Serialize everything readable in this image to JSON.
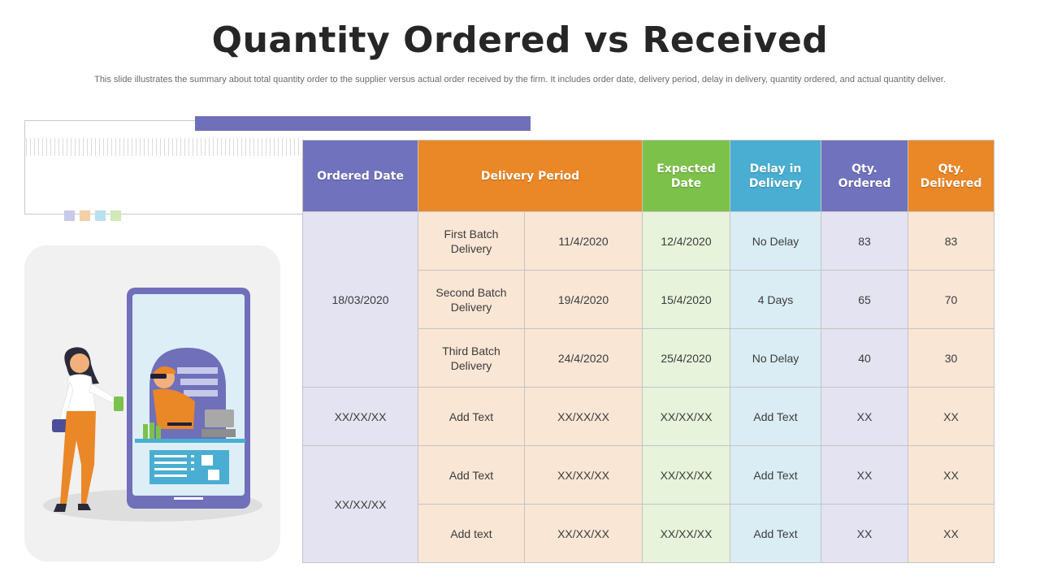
{
  "title": "Quantity Ordered vs Received",
  "subtitle": "This slide illustrates the summary about total quantity order to the supplier versus actual order received by the firm. It includes order date, delivery period, delay in delivery, quantity ordered, and actual quantity deliver.",
  "colors": {
    "purple": "#7072bd",
    "orange": "#ea8726",
    "green": "#7cc24a",
    "blue": "#49aed1"
  },
  "table": {
    "headers": {
      "ordered_date": "Ordered Date",
      "delivery_period": "Delivery Period",
      "expected_date": "Expected Date",
      "delay": "Delay in Delivery",
      "qty_ordered": "Qty. Ordered",
      "qty_delivered": "Qty. Delivered"
    },
    "groups": [
      {
        "ordered_date": "18/03/2020"
      },
      {
        "ordered_date": "XX/XX/XX"
      },
      {
        "ordered_date": "XX/XX/XX"
      }
    ],
    "rows": [
      {
        "batch": "First Batch Delivery",
        "delivery_date": "11/4/2020",
        "expected": "12/4/2020",
        "delay": "No Delay",
        "ordered": "83",
        "delivered": "83"
      },
      {
        "batch": "Second Batch Delivery",
        "delivery_date": "19/4/2020",
        "expected": "15/4/2020",
        "delay": "4 Days",
        "ordered": "65",
        "delivered": "70"
      },
      {
        "batch": "Third Batch Delivery",
        "delivery_date": "24/4/2020",
        "expected": "25/4/2020",
        "delay": "No Delay",
        "ordered": "40",
        "delivered": "30"
      },
      {
        "batch": "Add Text",
        "delivery_date": "XX/XX/XX",
        "expected": "XX/XX/XX",
        "delay": "Add Text",
        "ordered": "XX",
        "delivered": "XX"
      },
      {
        "batch": "Add Text",
        "delivery_date": "XX/XX/XX",
        "expected": "XX/XX/XX",
        "delay": "Add Text",
        "ordered": "XX",
        "delivered": "XX"
      },
      {
        "batch": "Add text",
        "delivery_date": "XX/XX/XX",
        "expected": "XX/XX/XX",
        "delay": "Add Text",
        "ordered": "XX",
        "delivered": "XX"
      }
    ]
  },
  "illustration": {
    "icon": "online-shopping-phone-illustration"
  }
}
